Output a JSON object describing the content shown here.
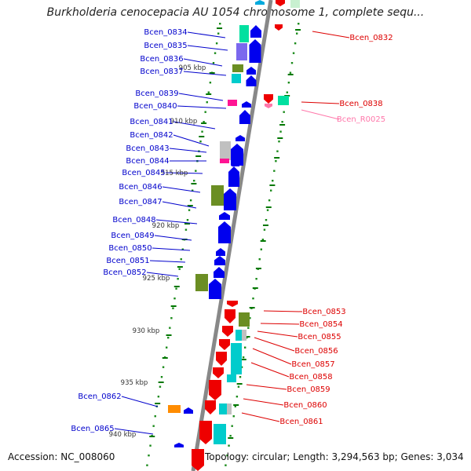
{
  "title": "Burkholderia cenocepacia AU 1054 chromosome 1, complete sequ...",
  "footer": {
    "accession": "Accession: NC_008060",
    "summary": "Topology: circular; Length: 3,294,563 bp; Genes: 3,034"
  },
  "colors": {
    "backbone": "#888888",
    "cds_forward": "#0000ee",
    "cds_reverse": "#ee0000",
    "olive": "#6b8e23",
    "teal": "#00cccc",
    "slate": "#7b68ee",
    "pink": "#ff1493",
    "grey": "#c0c0c0",
    "orange": "#ff8c00",
    "mint": "#00e0a0",
    "tick": "#007700",
    "label_left": "#0000cc",
    "label_right": "#dd0000",
    "label_rna": "#ff77aa"
  },
  "scale_labels": [
    "905 kbp",
    "910 kbp",
    "915 kbp",
    "920 kbp",
    "925 kbp",
    "930 kbp",
    "935 kbp",
    "940 kbp"
  ],
  "genes_left": [
    {
      "name": "Bcen_0834"
    },
    {
      "name": "Bcen_0835"
    },
    {
      "name": "Bcen_0836"
    },
    {
      "name": "Bcen_0837"
    },
    {
      "name": "Bcen_0839"
    },
    {
      "name": "Bcen_0840"
    },
    {
      "name": "Bcen_0841"
    },
    {
      "name": "Bcen_0842"
    },
    {
      "name": "Bcen_0843"
    },
    {
      "name": "Bcen_0844"
    },
    {
      "name": "Bcen_0845"
    },
    {
      "name": "Bcen_0846"
    },
    {
      "name": "Bcen_0847"
    },
    {
      "name": "Bcen_0848"
    },
    {
      "name": "Bcen_0849"
    },
    {
      "name": "Bcen_0850"
    },
    {
      "name": "Bcen_0851"
    },
    {
      "name": "Bcen_0852"
    },
    {
      "name": "Bcen_0862"
    },
    {
      "name": "Bcen_0865"
    }
  ],
  "genes_right": [
    {
      "name": "Bcen_0832"
    },
    {
      "name": "Bcen_0838"
    },
    {
      "name": "Bcen_R0025"
    },
    {
      "name": "Bcen_0853"
    },
    {
      "name": "Bcen_0854"
    },
    {
      "name": "Bcen_0855"
    },
    {
      "name": "Bcen_0856"
    },
    {
      "name": "Bcen_0857"
    },
    {
      "name": "Bcen_0858"
    },
    {
      "name": "Bcen_0859"
    },
    {
      "name": "Bcen_0860"
    },
    {
      "name": "Bcen_0861"
    }
  ]
}
